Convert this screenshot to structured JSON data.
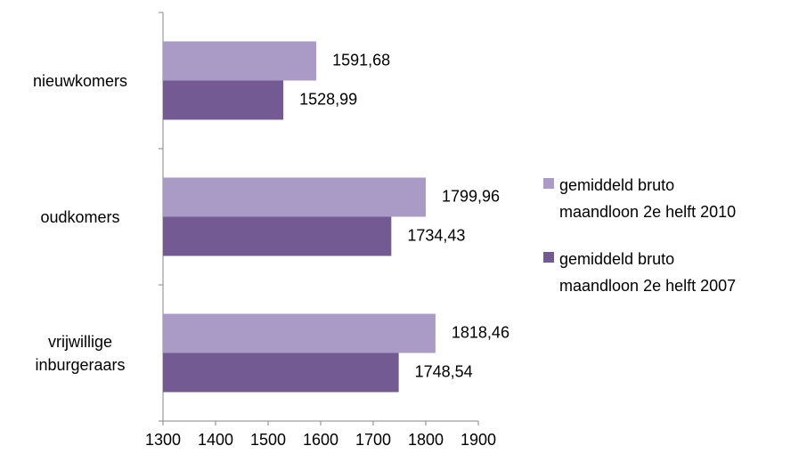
{
  "chart_data": {
    "type": "bar",
    "orientation": "horizontal",
    "categories": [
      "nieuwkomers",
      "oudkomers",
      "vrijwillige inburgeraars"
    ],
    "series": [
      {
        "name": "gemiddeld bruto maandloon 2e helft 2010",
        "color": "#a99bc5",
        "values": [
          1591.68,
          1799.96,
          1818.46
        ],
        "value_labels": [
          "1591,68",
          "1799,96",
          "1818,46"
        ]
      },
      {
        "name": "gemiddeld bruto maandloon 2e helft 2007",
        "color": "#735a93",
        "values": [
          1528.99,
          1734.43,
          1748.54
        ],
        "value_labels": [
          "1528,99",
          "1734,43",
          "1748,54"
        ]
      }
    ],
    "xlim": [
      1300,
      1900
    ],
    "xticks": [
      1300,
      1400,
      1500,
      1600,
      1700,
      1800,
      1900
    ],
    "grid": false,
    "legend": "right"
  }
}
